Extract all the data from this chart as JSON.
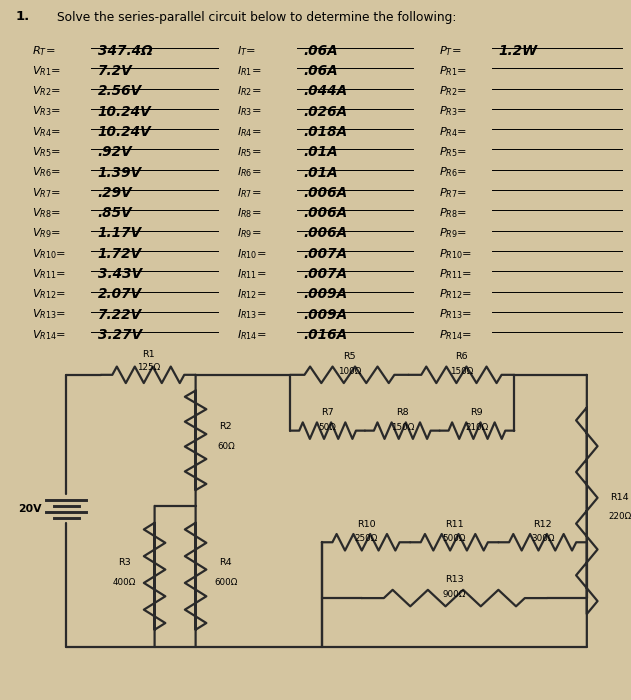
{
  "bg_color": "#d4c5a0",
  "title_num": "1.",
  "title_text": "Solve the series-parallel circuit below to determine the following:",
  "col1_prefixes": [
    "RT = ",
    "VR1 = ",
    "VR2 = ",
    "VR3 = ",
    "VR4 = ",
    "VR5 = ",
    "VR6 = ",
    "VR7 = ",
    "VR8 = ",
    "VR9 = ",
    "VR10 = ",
    "VR11 = ",
    "VR12 = ",
    "VR13 = ",
    "VR14 = "
  ],
  "col1_answers": [
    "347.4Ω",
    "7.2V",
    "2.56V",
    "10.24V",
    "10.24V",
    ".92V",
    "1.39V",
    ".29V",
    ".85V",
    "1.17V",
    "1.72V",
    "3.43V",
    "2.07V",
    "7.22V",
    "3.27V"
  ],
  "col2_prefixes": [
    "IT = ",
    "IR1 = ",
    "IR2 = ",
    "IR3 = ",
    "IR4 = ",
    "IR5 = ",
    "IR6 = ",
    "IR7 = ",
    "IR8 = ",
    "IR9 = ",
    "IR10 = ",
    "IR11 = ",
    "IR12 = ",
    "IR13 = ",
    "IR14 = "
  ],
  "col2_answers": [
    ".06A",
    ".06A",
    ".044A",
    ".026A",
    ".018A",
    ".01A",
    ".01A",
    ".006A",
    ".006A",
    ".006A",
    ".007A",
    ".007A",
    ".009A",
    ".009A",
    ".016A"
  ],
  "col3_prefixes": [
    "PT = ",
    "PR1 = ",
    "PR2 = ",
    "PR3 = ",
    "PR4 = ",
    "PR5 = ",
    "PR6 = ",
    "PR7 = ",
    "PR8 = ",
    "PR9 = ",
    "PR10 = ",
    "PR11 = ",
    "PR12 = ",
    "PR13 = ",
    "PR14 = "
  ],
  "col3_answers": [
    "1.2W",
    "",
    "",
    "",
    "",
    "",
    "",
    "",
    "",
    "",
    "",
    "",
    "",
    "",
    ""
  ],
  "col1_sub": [
    "T",
    "R1",
    "R2",
    "R3",
    "R4",
    "R5",
    "R6",
    "R7",
    "R8",
    "R9",
    "R10",
    "R11",
    "R12",
    "R13",
    "R14"
  ],
  "col1_var": [
    "R",
    "V",
    "V",
    "V",
    "V",
    "V",
    "V",
    "V",
    "V",
    "V",
    "V",
    "V",
    "V",
    "V",
    "V"
  ],
  "col2_var": [
    "I",
    "I",
    "I",
    "I",
    "I",
    "I",
    "I",
    "I",
    "I",
    "I",
    "I",
    "I",
    "I",
    "I",
    "I"
  ],
  "col3_var": [
    "P",
    "P",
    "P",
    "P",
    "P",
    "P",
    "P",
    "P",
    "P",
    "P",
    "P",
    "P",
    "P",
    "P",
    "P"
  ],
  "ohm": "Ω",
  "voltage_source": "20V",
  "lc": "#2a2a2a"
}
